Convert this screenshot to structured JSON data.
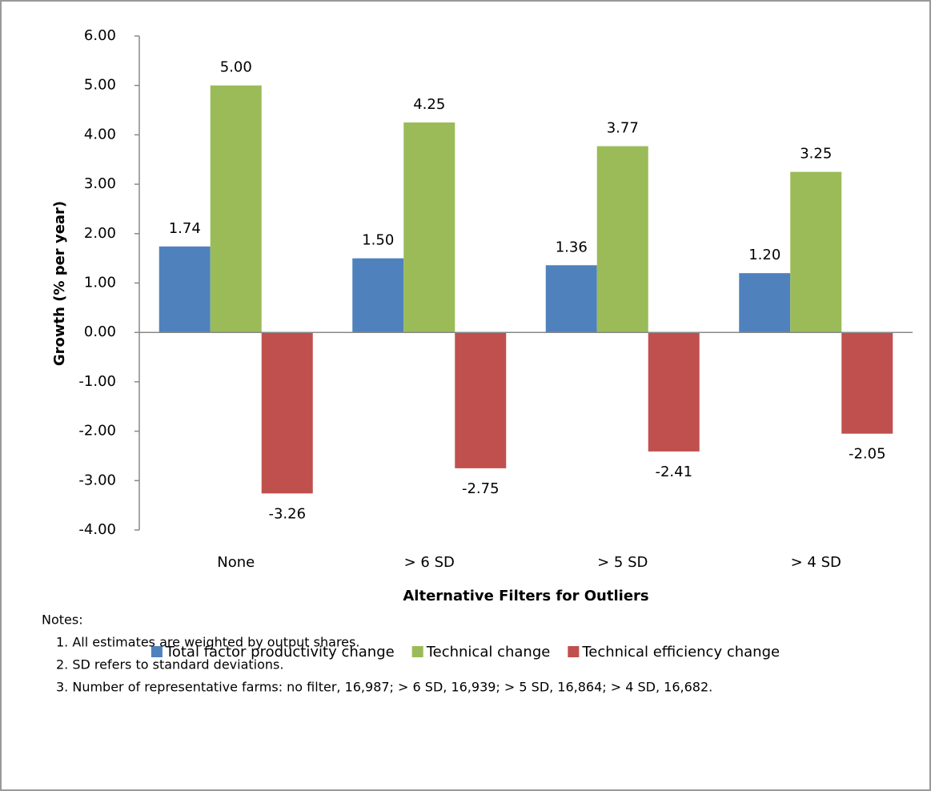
{
  "chart_data": {
    "type": "bar",
    "y_label": "Growth (% per year)",
    "x_label": "Alternative Filters for Outliers",
    "categories": [
      "None",
      "> 6 SD",
      "> 5 SD",
      "> 4 SD"
    ],
    "series": [
      {
        "name": "Total factor productivity change",
        "color": "#4f81bd",
        "values": [
          1.74,
          1.5,
          1.36,
          1.2
        ],
        "value_labels": [
          "1.74",
          "1.50",
          "1.36",
          "1.20"
        ]
      },
      {
        "name": "Technical change",
        "color": "#9bbb59",
        "values": [
          5,
          4.25,
          3.77,
          3.25
        ],
        "value_labels": [
          "5.00",
          "4.25",
          "3.77",
          "3.25"
        ]
      },
      {
        "name": "Technical efficiency change",
        "color": "#c0504d",
        "values": [
          -3.26,
          -2.75,
          -2.41,
          -2.05
        ],
        "value_labels": [
          "-3.26",
          "-2.75",
          "-2.41",
          "-2.05"
        ]
      }
    ],
    "ylim": [
      -4,
      6
    ],
    "yticks": [
      {
        "value": -4,
        "label": "-4.00"
      },
      {
        "value": -3,
        "label": "-3.00"
      },
      {
        "value": -2,
        "label": "-2.00"
      },
      {
        "value": -1,
        "label": "-1.00"
      },
      {
        "value": 0,
        "label": "0.00"
      },
      {
        "value": 1,
        "label": "1.00"
      },
      {
        "value": 2,
        "label": "2.00"
      },
      {
        "value": 3,
        "label": "3.00"
      },
      {
        "value": 4,
        "label": "4.00"
      },
      {
        "value": 5,
        "label": "5.00"
      },
      {
        "value": 6,
        "label": "6.00"
      }
    ],
    "grid": false,
    "legend": "bottom",
    "notes": {
      "title": "Notes:",
      "items": [
        "1. All estimates are weighted by output shares.",
        "2. SD refers to standard deviations.",
        "3. Number of representative farms: no filter, 16,987; > 6 SD, 16,939; > 5 SD, 16,864; > 4 SD, 16,682."
      ]
    }
  }
}
